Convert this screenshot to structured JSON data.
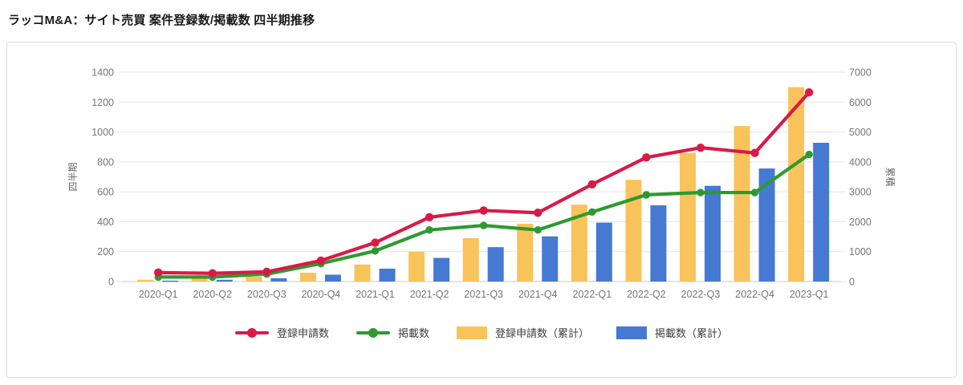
{
  "page": {
    "title": "ラッコM&A：サイト売買 案件登録数/掲載数 四半期推移"
  },
  "colors": {
    "registrations_line": "#d91a47",
    "listings_line": "#2e9a2e",
    "registrations_cumulative_bar": "#f9c35b",
    "listings_cumulative_bar": "#4679d2",
    "gridline": "#e6e6e6",
    "axis_line": "#c9c9c9",
    "tick_text": "#757575",
    "axis_title_text": "#666666"
  },
  "chart_data": {
    "type": "combo-bar-line",
    "title": "ラッコM&A：サイト売買 案件登録数/掲載数 四半期推移",
    "categories": [
      "2020-Q1",
      "2020-Q2",
      "2020-Q3",
      "2020-Q4",
      "2021-Q1",
      "2021-Q2",
      "2021-Q3",
      "2021-Q4",
      "2022-Q1",
      "2022-Q2",
      "2022-Q3",
      "2022-Q4",
      "2023-Q1"
    ],
    "series": [
      {
        "name": "登録申請数",
        "kind": "line",
        "axis": "left",
        "color": "#d91a47",
        "key": "registrations-line",
        "values": [
          60,
          55,
          65,
          140,
          260,
          430,
          475,
          460,
          650,
          830,
          895,
          860,
          1265
        ]
      },
      {
        "name": "掲載数",
        "kind": "line",
        "axis": "left",
        "color": "#2e9a2e",
        "key": "listings-line",
        "values": [
          30,
          30,
          50,
          120,
          205,
          345,
          375,
          345,
          465,
          580,
          595,
          595,
          850
        ]
      },
      {
        "name": "登録申請数（累計）",
        "kind": "bar",
        "axis": "right",
        "color": "#f9c35b",
        "key": "registrations-cumulative-bar",
        "values": [
          60,
          100,
          160,
          295,
          570,
          1000,
          1450,
          1930,
          2570,
          3400,
          4300,
          5200,
          6500
        ]
      },
      {
        "name": "掲載数（累計）",
        "kind": "bar",
        "axis": "right",
        "color": "#4679d2",
        "key": "listings-cumulative-bar",
        "values": [
          30,
          60,
          110,
          230,
          430,
          790,
          1150,
          1510,
          1970,
          2550,
          3200,
          3780,
          4640
        ]
      }
    ],
    "left_axis": {
      "label": "四半期",
      "min": 0,
      "max": 1400,
      "ticks": [
        0,
        200,
        400,
        600,
        800,
        1000,
        1200,
        1400
      ]
    },
    "right_axis": {
      "label": "累積",
      "min": 0,
      "max": 7000,
      "ticks": [
        0,
        1000,
        2000,
        3000,
        4000,
        5000,
        6000,
        7000
      ]
    },
    "grid": true,
    "legend_position": "bottom"
  }
}
